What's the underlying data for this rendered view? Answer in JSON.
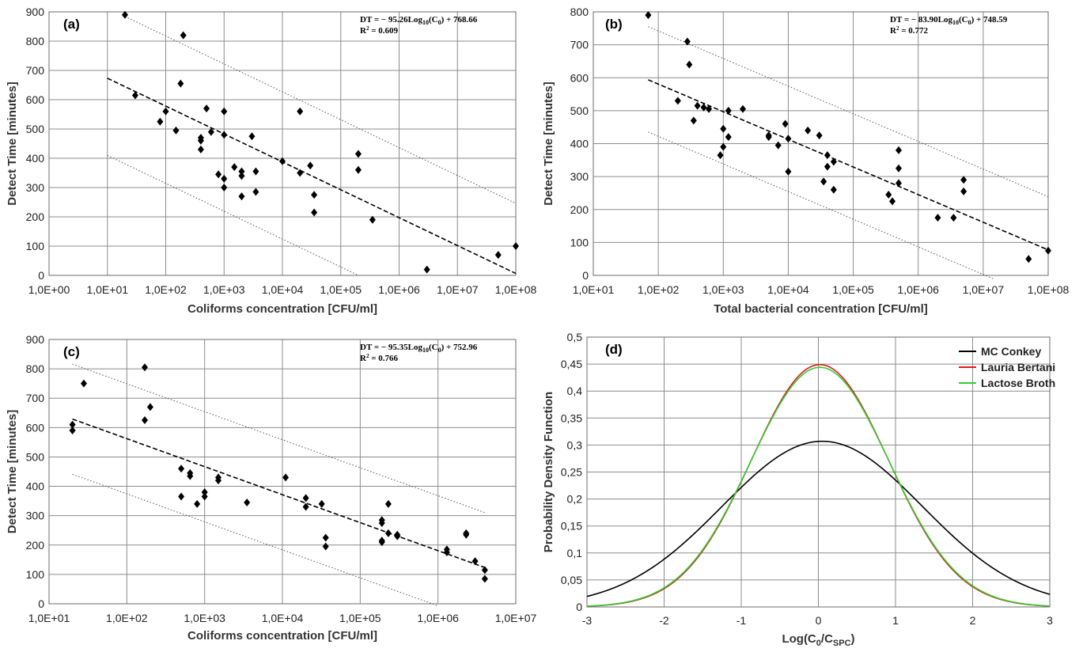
{
  "chart_data": [
    {
      "id": "a",
      "type": "scatter",
      "panel_label": "(a)",
      "xlabel": "Coliforms concentration [CFU/ml]",
      "ylabel": "Detect Time [minutes]",
      "x_scale": "log",
      "xlim": [
        1,
        100000000
      ],
      "ylim": [
        0,
        900
      ],
      "x_ticks": [
        1,
        10,
        100,
        1000,
        10000,
        100000,
        1000000,
        10000000,
        100000000
      ],
      "x_tick_labels": [
        "1,0E+00",
        "1,0E+01",
        "1,0E+02",
        "1,0E+03",
        "1,0E+04",
        "1,0E+05",
        "1,0E+06",
        "1,0E+07",
        "1,0E+08"
      ],
      "y_ticks": [
        0,
        100,
        200,
        300,
        400,
        500,
        600,
        700,
        800,
        900
      ],
      "grid": true,
      "equation_line1": "DT = − 95.26Log",
      "equation_sub": "10",
      "equation_line1_tail": "(C",
      "equation_sub2": "0",
      "equation_line1_end": ") + 768.66",
      "r2_label": "R",
      "r2_sup": "2",
      "r2_value": " = 0.609",
      "fit": {
        "slope": -95.26,
        "intercept": 768.66,
        "x_from": 10,
        "x_to": 100000000
      },
      "bounds": [
        {
          "slope": -95.26,
          "intercept": 1008,
          "x_from": 20,
          "x_to": 100000000
        },
        {
          "slope": -95.26,
          "intercept": 505,
          "x_from": 10,
          "x_to": 200000
        }
      ],
      "points": [
        [
          20,
          890
        ],
        [
          30,
          615
        ],
        [
          80,
          525
        ],
        [
          100,
          560
        ],
        [
          150,
          495
        ],
        [
          180,
          655
        ],
        [
          200,
          820
        ],
        [
          400,
          470
        ],
        [
          400,
          460
        ],
        [
          400,
          430
        ],
        [
          500,
          570
        ],
        [
          600,
          490
        ],
        [
          800,
          345
        ],
        [
          1000,
          560
        ],
        [
          1000,
          480
        ],
        [
          1000,
          330
        ],
        [
          1000,
          300
        ],
        [
          1500,
          370
        ],
        [
          2000,
          355
        ],
        [
          2000,
          340
        ],
        [
          2000,
          270
        ],
        [
          3000,
          475
        ],
        [
          3500,
          355
        ],
        [
          3500,
          285
        ],
        [
          10000,
          390
        ],
        [
          20000,
          560
        ],
        [
          20000,
          350
        ],
        [
          30000,
          375
        ],
        [
          35000,
          275
        ],
        [
          35000,
          215
        ],
        [
          200000,
          415
        ],
        [
          200000,
          360
        ],
        [
          350000,
          190
        ],
        [
          3000000,
          20
        ],
        [
          50000000,
          70
        ],
        [
          100000000,
          100
        ]
      ]
    },
    {
      "id": "b",
      "type": "scatter",
      "panel_label": "(b)",
      "xlabel": "Total bacterial concentration [CFU/ml]",
      "ylabel": "Detect Time [minutes]",
      "x_scale": "log",
      "xlim": [
        10,
        100000000
      ],
      "ylim": [
        0,
        800
      ],
      "x_ticks": [
        10,
        100,
        1000,
        10000,
        100000,
        1000000,
        10000000,
        100000000
      ],
      "x_tick_labels": [
        "1,0E+01",
        "1,0E+02",
        "1,0E+03",
        "1,0E+04",
        "1,0E+05",
        "1,0E+06",
        "1,0E+07",
        "1,0E+08"
      ],
      "y_ticks": [
        0,
        100,
        200,
        300,
        400,
        500,
        600,
        700,
        800
      ],
      "grid": true,
      "equation_line1": "DT = − 83.90Log",
      "equation_sub": "10",
      "equation_line1_tail": "(C",
      "equation_sub2": "0",
      "equation_line1_end": ") + 748.59",
      "r2_label": "R",
      "r2_sup": "2",
      "r2_value": " = 0.772",
      "fit": {
        "slope": -83.9,
        "intercept": 748.59,
        "x_from": 70,
        "x_to": 100000000
      },
      "bounds": [
        {
          "slope": -83.9,
          "intercept": 910,
          "x_from": 70,
          "x_to": 100000000
        },
        {
          "slope": -83.9,
          "intercept": 590,
          "x_from": 70,
          "x_to": 15000000
        }
      ],
      "points": [
        [
          70,
          790
        ],
        [
          200,
          530
        ],
        [
          280,
          710
        ],
        [
          300,
          640
        ],
        [
          350,
          470
        ],
        [
          400,
          515
        ],
        [
          500,
          510
        ],
        [
          600,
          505
        ],
        [
          900,
          365
        ],
        [
          1000,
          445
        ],
        [
          1000,
          390
        ],
        [
          1200,
          500
        ],
        [
          1200,
          420
        ],
        [
          2000,
          505
        ],
        [
          5000,
          425
        ],
        [
          5000,
          420
        ],
        [
          7000,
          395
        ],
        [
          9000,
          460
        ],
        [
          10000,
          415
        ],
        [
          10000,
          315
        ],
        [
          20000,
          440
        ],
        [
          30000,
          425
        ],
        [
          35000,
          285
        ],
        [
          40000,
          365
        ],
        [
          40000,
          330
        ],
        [
          50000,
          345
        ],
        [
          50000,
          260
        ],
        [
          350000,
          245
        ],
        [
          400000,
          225
        ],
        [
          500000,
          380
        ],
        [
          500000,
          325
        ],
        [
          500000,
          280
        ],
        [
          2000000,
          175
        ],
        [
          3500000,
          175
        ],
        [
          5000000,
          290
        ],
        [
          5000000,
          255
        ],
        [
          50000000,
          50
        ],
        [
          100000000,
          75
        ]
      ]
    },
    {
      "id": "c",
      "type": "scatter",
      "panel_label": "(c)",
      "xlabel": "Coliforms concentration [CFU/ml]",
      "ylabel": "Detect Time [minutes]",
      "x_scale": "log",
      "xlim": [
        10,
        10000000
      ],
      "ylim": [
        0,
        900
      ],
      "x_ticks": [
        10,
        100,
        1000,
        10000,
        100000,
        1000000,
        10000000
      ],
      "x_tick_labels": [
        "1,0E+01",
        "1,0E+02",
        "1,0E+03",
        "1,0E+04",
        "1,0E+05",
        "1,0E+06",
        "1,0E+07"
      ],
      "y_ticks": [
        0,
        100,
        200,
        300,
        400,
        500,
        600,
        700,
        800,
        900
      ],
      "grid": true,
      "equation_line1": "DT = − 95.35Log",
      "equation_sub": "10",
      "equation_line1_tail": "(C",
      "equation_sub2": "0",
      "equation_line1_end": ") + 752.96",
      "r2_label": "R",
      "r2_sup": "2",
      "r2_value": " = 0.766",
      "fit": {
        "slope": -95.35,
        "intercept": 752.96,
        "x_from": 20,
        "x_to": 4000000
      },
      "bounds": [
        {
          "slope": -95.35,
          "intercept": 940,
          "x_from": 20,
          "x_to": 4000000
        },
        {
          "slope": -95.35,
          "intercept": 565,
          "x_from": 20,
          "x_to": 1000000
        }
      ],
      "points": [
        [
          20,
          610
        ],
        [
          20,
          590
        ],
        [
          28,
          750
        ],
        [
          170,
          805
        ],
        [
          170,
          625
        ],
        [
          200,
          670
        ],
        [
          500,
          460
        ],
        [
          500,
          365
        ],
        [
          650,
          445
        ],
        [
          650,
          435
        ],
        [
          800,
          340
        ],
        [
          1000,
          380
        ],
        [
          1000,
          365
        ],
        [
          1500,
          430
        ],
        [
          1500,
          420
        ],
        [
          3500,
          345
        ],
        [
          11000,
          430
        ],
        [
          20000,
          360
        ],
        [
          20000,
          330
        ],
        [
          32000,
          340
        ],
        [
          36000,
          225
        ],
        [
          36000,
          195
        ],
        [
          190000,
          285
        ],
        [
          190000,
          275
        ],
        [
          190000,
          215
        ],
        [
          190000,
          210
        ],
        [
          230000,
          340
        ],
        [
          230000,
          240
        ],
        [
          300000,
          235
        ],
        [
          300000,
          230
        ],
        [
          1300000,
          185
        ],
        [
          1300000,
          175
        ],
        [
          2300000,
          240
        ],
        [
          2300000,
          235
        ],
        [
          3000000,
          145
        ],
        [
          4000000,
          115
        ],
        [
          4000000,
          85
        ]
      ]
    },
    {
      "id": "d",
      "type": "line",
      "panel_label": "(d)",
      "xlabel": "Log(C",
      "xlabel_sub": "0",
      "xlabel_mid": "/C",
      "xlabel_sub2": "SPC",
      "xlabel_end": ")",
      "ylabel": "Probability Density Function",
      "xlim": [
        -3,
        3
      ],
      "ylim": [
        0,
        0.5
      ],
      "x_ticks": [
        -3,
        -2,
        -1,
        0,
        1,
        2,
        3
      ],
      "x_tick_labels": [
        "-3",
        "-2",
        "-1",
        "0",
        "1",
        "2",
        "3"
      ],
      "y_ticks": [
        0,
        0.05,
        0.1,
        0.15,
        0.2,
        0.25,
        0.3,
        0.35,
        0.4,
        0.45,
        0.5
      ],
      "y_tick_labels": [
        "0",
        "0,05",
        "0,1",
        "0,15",
        "0,2",
        "0,25",
        "0,3",
        "0,35",
        "0,4",
        "0,45",
        "0,5"
      ],
      "grid": true,
      "legend_position": "top-right",
      "series": [
        {
          "name": "MC Conkey",
          "color": "#000000",
          "mean": 0.05,
          "peak": 0.307
        },
        {
          "name": "Lauria Bertani",
          "color": "#e0191b",
          "mean": 0.02,
          "peak": 0.449
        },
        {
          "name": "Lactose Broth",
          "color": "#33cc33",
          "mean": 0.02,
          "peak": 0.444
        }
      ]
    }
  ]
}
